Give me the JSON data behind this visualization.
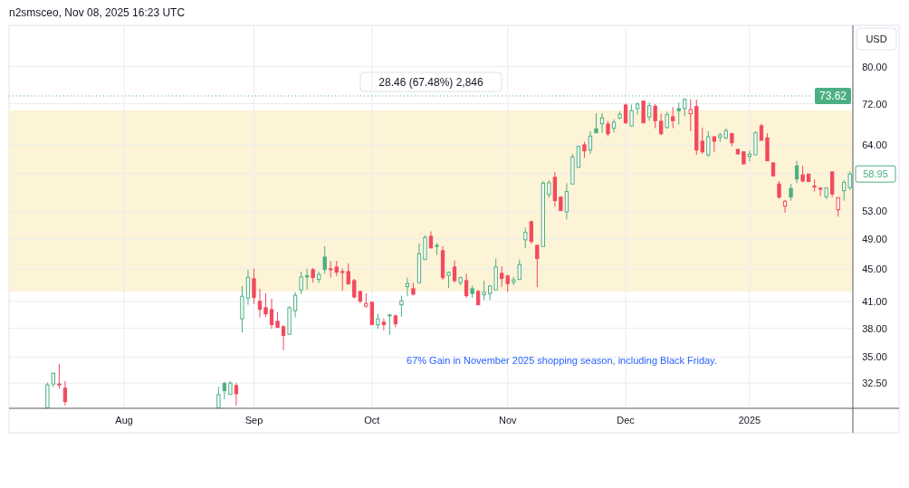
{
  "chart_data": {
    "type": "candlestick",
    "subtitle": "n2smsceo, Nov 08, 2025 16:23 UTC",
    "ylabel": "USD",
    "categories": [
      null,
      null,
      null,
      null,
      null,
      null,
      null,
      null,
      null,
      null,
      null,
      null,
      null,
      null,
      null,
      null,
      null,
      null,
      null,
      "Aug",
      null,
      null,
      null,
      null,
      null,
      null,
      null,
      null,
      null,
      null,
      null,
      null,
      null,
      null,
      null,
      null,
      null,
      null,
      null,
      null,
      null,
      "Sep",
      null,
      null,
      null,
      null,
      null,
      null,
      null,
      null,
      null,
      null,
      null,
      null,
      null,
      null,
      null,
      null,
      null,
      null,
      null,
      "Oct",
      null,
      null,
      null,
      null,
      null,
      null,
      null,
      null,
      null,
      null,
      null,
      null,
      null,
      null,
      null,
      null,
      null,
      null,
      null,
      null,
      null,
      null,
      "Nov",
      null,
      null,
      null,
      null,
      null,
      null,
      null,
      null,
      null,
      null,
      null,
      null,
      null,
      null,
      null,
      null,
      null,
      null,
      null,
      "Dec",
      null,
      null,
      null,
      null,
      null,
      null,
      null,
      null,
      null,
      null,
      null,
      null,
      null,
      null,
      null,
      null,
      null,
      null,
      null,
      null,
      "2025",
      null,
      null,
      null,
      null,
      null,
      null,
      null,
      null,
      null,
      null,
      null,
      null,
      null,
      null,
      null,
      null,
      null
    ],
    "ohlc": [
      null,
      null,
      null,
      null,
      null,
      null,
      [
        30.3,
        32.56,
        30.3,
        32.34
      ],
      [
        32.42,
        33.5,
        32.13,
        33.43
      ],
      [
        32.42,
        34.33,
        32.0,
        32.36
      ],
      [
        32.03,
        32.69,
        30.5,
        30.84
      ],
      null,
      null,
      null,
      null,
      null,
      null,
      null,
      null,
      null,
      null,
      null,
      null,
      null,
      null,
      null,
      null,
      null,
      null,
      null,
      null,
      null,
      null,
      null,
      null,
      null,
      [
        30.3,
        32.17,
        30.3,
        31.46
      ],
      [
        32.47,
        32.63,
        31.04,
        31.8
      ],
      [
        31.47,
        32.69,
        31.45,
        32.5
      ],
      [
        32.27,
        32.5,
        30.5,
        31.53
      ],
      [
        39.03,
        42.85,
        37.54,
        41.62
      ],
      [
        41.41,
        44.85,
        40.62,
        43.93
      ],
      [
        43.74,
        45.0,
        40.73,
        41.47
      ],
      [
        41.02,
        42.52,
        39.19,
        40.1
      ],
      [
        40.28,
        41.98,
        39.26,
        39.59
      ],
      [
        40.07,
        41.33,
        37.93,
        38.39
      ],
      [
        38.75,
        39.76,
        38.05,
        38.09
      ],
      [
        38.16,
        38.33,
        35.71,
        37.22
      ],
      [
        37.35,
        40.46,
        37.29,
        40.28
      ],
      [
        39.94,
        42.12,
        39.19,
        41.73
      ],
      [
        42.38,
        44.65,
        41.87,
        43.97
      ],
      [
        44.12,
        45.0,
        42.41,
        43.99
      ],
      [
        44.89,
        45.12,
        43.26,
        43.89
      ],
      [
        43.66,
        44.65,
        43.22,
        44.31
      ],
      [
        46.53,
        48.0,
        44.39,
        44.92
      ],
      [
        45.0,
        46.02,
        43.89,
        44.9
      ],
      [
        45.23,
        46.02,
        44.08,
        44.57
      ],
      [
        44.65,
        45.04,
        42.3,
        44.55
      ],
      [
        44.65,
        45.7,
        43.08,
        43.1
      ],
      [
        43.52,
        43.72,
        41.33,
        41.54
      ],
      [
        42.19,
        42.19,
        40.8,
        41.05
      ],
      [
        40.46,
        41.98,
        40.28,
        40.77
      ],
      [
        40.91,
        41.0,
        38.39,
        38.39
      ],
      [
        38.36,
        39.59,
        37.93,
        39.03
      ],
      [
        38.65,
        39.08,
        37.77,
        38.39
      ],
      [
        39.4,
        39.59,
        37.29,
        39.46
      ],
      [
        39.36,
        39.49,
        38.12,
        38.48
      ],
      [
        40.62,
        41.69,
        39.26,
        41.09
      ],
      [
        42.77,
        43.89,
        41.6,
        43.15
      ],
      [
        42.52,
        43.22,
        41.69,
        41.87
      ],
      [
        43.26,
        48.37,
        43.26,
        46.98
      ],
      [
        46.21,
        49.5,
        46.21,
        49.21
      ],
      [
        49.37,
        50.05,
        47.75,
        47.75
      ],
      [
        48.1,
        48.45,
        46.81,
        47.98
      ],
      [
        47.38,
        47.99,
        43.6,
        43.89
      ],
      [
        44.16,
        44.65,
        42.6,
        44.54
      ],
      [
        45.23,
        46.09,
        43.26,
        43.52
      ],
      [
        43.26,
        44.0,
        42.96,
        43.89
      ],
      [
        43.52,
        44.39,
        41.41,
        41.69
      ],
      [
        42.52,
        42.88,
        41.41,
        41.94
      ],
      [
        42.19,
        42.41,
        40.62,
        40.62
      ],
      [
        41.79,
        43.52,
        41.15,
        42.08
      ],
      [
        41.94,
        42.96,
        41.15,
        42.85
      ],
      [
        42.38,
        46.33,
        42.38,
        45.23
      ],
      [
        44.42,
        45.31,
        42.77,
        43.78
      ],
      [
        44.08,
        44.28,
        42.16,
        43.15
      ],
      [
        43.33,
        44.0,
        42.96,
        43.6
      ],
      [
        43.66,
        46.21,
        43.66,
        45.55
      ],
      [
        48.87,
        50.57,
        47.71,
        49.92
      ],
      [
        51.45,
        51.63,
        48.33,
        48.65
      ],
      [
        48.12,
        48.12,
        42.71,
        46.33
      ],
      [
        47.96,
        57.78,
        47.96,
        57.43
      ],
      [
        55.58,
        57.88,
        55.12,
        57.5
      ],
      [
        58.38,
        59.29,
        53.72,
        54.64
      ],
      [
        55.2,
        55.2,
        53.11,
        53.11
      ],
      [
        52.93,
        57.43,
        51.81,
        56.07
      ],
      [
        57.29,
        62.42,
        57.29,
        61.89
      ],
      [
        60.06,
        63.77,
        60.06,
        63.77
      ],
      [
        64.05,
        64.6,
        61.73,
        62.96
      ],
      [
        63.12,
        66.58,
        62.42,
        65.67
      ],
      [
        67.04,
        70.1,
        66.28,
        66.28
      ],
      [
        68.01,
        70.1,
        66.28,
        69.14
      ],
      [
        67.96,
        68.55,
        65.6,
        66.11
      ],
      [
        67.15,
        68.89,
        66.28,
        68.31
      ],
      [
        69.14,
        70.46,
        68.89,
        69.86
      ],
      [
        71.74,
        72.0,
        67.99,
        68.19
      ],
      [
        67.56,
        71.8,
        67.56,
        70.59
      ],
      [
        71.0,
        72.24,
        69.79,
        71.93
      ],
      [
        72.54,
        72.6,
        68.19,
        68.19
      ],
      [
        69.32,
        72.24,
        68.61,
        71.61
      ],
      [
        71.5,
        71.93,
        67.15,
        68.61
      ],
      [
        68.49,
        69.97,
        65.84,
        66.11
      ],
      [
        67.27,
        70.4,
        67.15,
        69.79
      ],
      [
        69.38,
        71.32,
        67.15,
        68.61
      ],
      [
        71.0,
        72.24,
        67.84,
        70.59
      ],
      [
        71.0,
        73.18,
        69.5,
        72.86
      ],
      [
        69.97,
        72.86,
        66.58,
        70.82
      ],
      [
        71.43,
        72.86,
        62.26,
        63.12
      ],
      [
        64.71,
        67.27,
        62.42,
        62.79
      ],
      [
        62.22,
        66.58,
        61.89,
        65.55
      ],
      [
        65.55,
        65.55,
        62.79,
        64.71
      ],
      [
        65.44,
        66.28,
        64.6,
        65.89
      ],
      [
        65.33,
        67.15,
        65.06,
        66.7
      ],
      [
        66.11,
        66.28,
        63.77,
        64.43
      ],
      [
        63.23,
        63.23,
        62.26,
        62.42
      ],
      [
        62.79,
        62.79,
        60.57,
        60.68
      ],
      [
        61.99,
        63.02,
        61.1,
        62.37
      ],
      [
        62.26,
        66.58,
        62.26,
        66.28
      ],
      [
        67.61,
        68.01,
        64.88,
        64.88
      ],
      [
        65.33,
        66.18,
        61.2,
        61.2
      ],
      [
        60.84,
        60.84,
        58.63,
        58.63
      ],
      [
        57.29,
        57.78,
        54.88,
        55.2
      ],
      [
        53.81,
        54.74,
        52.8,
        54.55
      ],
      [
        56.56,
        57.29,
        54.64,
        55.2
      ],
      [
        60.32,
        61.2,
        57.43,
        58.12
      ],
      [
        58.79,
        60.32,
        57.56,
        57.78
      ],
      [
        58.94,
        58.94,
        57.7,
        57.7
      ],
      [
        56.95,
        58.03,
        56.07,
        56.85
      ],
      [
        56.6,
        56.79,
        55.34,
        56.52
      ],
      [
        55.26,
        56.79,
        54.88,
        56.64
      ],
      [
        59.29,
        59.39,
        55.2,
        55.69
      ],
      [
        53.25,
        55.12,
        52.21,
        55.12
      ],
      [
        56.21,
        57.93,
        54.64,
        57.53
      ],
      [
        56.7,
        59.39,
        56.31,
        58.95
      ]
    ],
    "colors": [
      null,
      null,
      null,
      null,
      null,
      null,
      "#4caf82",
      "#4caf82",
      "#f2495c",
      "#f2495c",
      null,
      null,
      null,
      null,
      null,
      null,
      null,
      null,
      null,
      null,
      null,
      null,
      null,
      null,
      null,
      null,
      null,
      null,
      null,
      null,
      null,
      null,
      null,
      null,
      null,
      "#4caf82",
      "#4caf82",
      "#4caf82",
      "#f2495c",
      "#4caf82",
      "#4caf82",
      "#f2495c",
      "#f2495c",
      "#f2495c",
      "#f2495c",
      "#f2495c",
      "#f2495c",
      "#4caf82",
      "#4caf82",
      "#4caf82",
      "#4caf82",
      "#f2495c",
      "#4caf82",
      "#4caf82",
      "#f2495c",
      "#f2495c",
      "#f2495c",
      "#f2495c",
      "#f2495c",
      "#f2495c",
      "#f2495c",
      "#f2495c",
      "#4caf82",
      "#f2495c",
      "#4caf82",
      "#f2495c",
      "#4caf82",
      "#4caf82",
      "#f2495c",
      "#4caf82",
      "#4caf82",
      "#f2495c",
      "#4caf82",
      "#f2495c",
      "#4caf82",
      "#f2495c",
      "#4caf82",
      "#f2495c",
      "#4caf82",
      "#f2495c",
      "#4caf82",
      "#4caf82",
      "#4caf82",
      "#f2495c",
      "#f2495c",
      "#4caf82",
      "#4caf82",
      "#4caf82",
      "#f2495c",
      "#f2495c",
      "#4caf82",
      "#4caf82",
      "#f2495c",
      "#f2495c",
      "#4caf82",
      "#4caf82",
      "#4caf82",
      "#f2495c",
      "#4caf82",
      "#4caf82",
      "#4caf82",
      "#f2495c",
      "#4caf82",
      "#4caf82",
      "#f2495c",
      "#4caf82",
      "#4caf82",
      "#f2495c",
      "#4caf82",
      "#f2495c",
      "#f2495c",
      "#4caf82",
      "#f2495c",
      "#4caf82",
      "#4caf82",
      "#f2495c",
      "#f2495c",
      "#f2495c",
      "#4caf82",
      "#f2495c",
      "#4caf82",
      "#4caf82",
      "#f2495c",
      "#f2495c",
      "#f2495c",
      "#4caf82",
      "#4caf82",
      "#f2495c",
      "#f2495c",
      "#f2495c",
      "#f2495c",
      "#f2495c",
      "#4caf82",
      "#4caf82",
      "#f2495c",
      "#f2495c",
      "#f2495c",
      "#f2495c",
      "#4caf82",
      "#f2495c",
      "#f2495c",
      "#4caf82",
      "#4caf82"
    ],
    "ylim": [
      30.25,
      90
    ],
    "yticks": [
      {
        "value": 32.5,
        "label": "32.50"
      },
      {
        "value": 35,
        "label": "35.00"
      },
      {
        "value": 38,
        "label": "38.00"
      },
      {
        "value": 41,
        "label": "41.00"
      },
      {
        "value": 45,
        "label": "45.00"
      },
      {
        "value": 49,
        "label": "49.00"
      },
      {
        "value": 53,
        "label": "53.00"
      },
      {
        "value": 59,
        "label": null
      },
      {
        "value": 64,
        "label": "64.00"
      },
      {
        "value": 72,
        "label": "72.00"
      },
      {
        "value": 80,
        "label": "80.00"
      }
    ],
    "log": "y",
    "grid": true,
    "ref_lines": [
      {
        "axis": "y",
        "value": 73.62,
        "label": "73.62",
        "color": "#4caf82",
        "line_style": "dotted"
      }
    ],
    "bands": [
      {
        "axis": "y",
        "from": 42.18,
        "to": 70.64,
        "label": "28.46 (67.48%) 2,846",
        "color": "#fdf3d6"
      }
    ],
    "annotations": [
      "67% Gain in November 2025 shopping season, including Black Friday.",
      {
        "text": "58.95",
        "y": 58.95
      }
    ]
  }
}
